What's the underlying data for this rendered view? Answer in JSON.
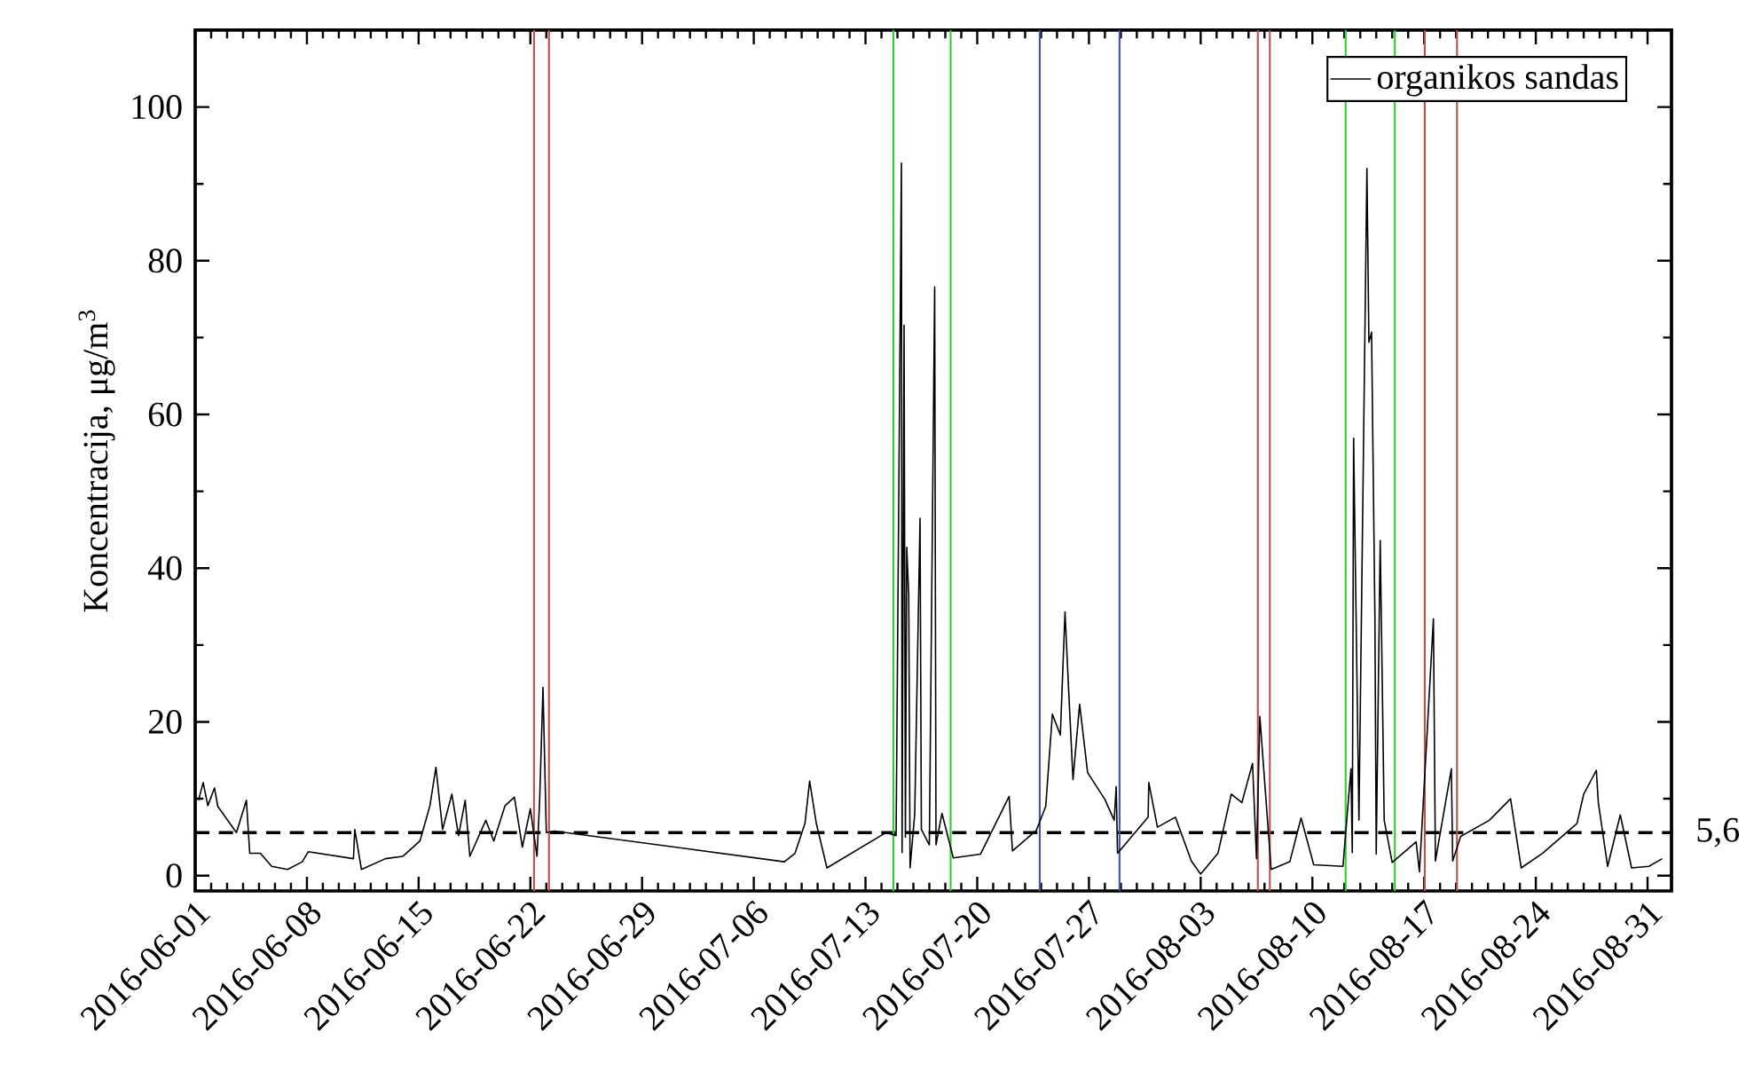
{
  "chart_data": {
    "type": "line",
    "ylabel": "Koncentracija, μg/m$^{3}$",
    "xlim": [
      "2016-06-01",
      "2016-09-01T12:00"
    ],
    "xticks": [
      "2016-06-01",
      "2016-06-08",
      "2016-06-15",
      "2016-06-22",
      "2016-06-29",
      "2016-07-06",
      "2016-07-13",
      "2016-07-20",
      "2016-07-27",
      "2016-08-03",
      "2016-08-10",
      "2016-08-17",
      "2016-08-24",
      "2016-08-31"
    ],
    "ylim": [
      -2,
      110
    ],
    "yticks": [
      0,
      20,
      40,
      60,
      80,
      100
    ],
    "legend": "top right",
    "grid": false,
    "series": [
      {
        "name": "organikos sandas",
        "color": "#000000",
        "line_style": "solid",
        "x": [
          "2016-06-01T05:00",
          "2016-06-01T12:00",
          "2016-06-01T19:00",
          "2016-06-02T05:00",
          "2016-06-02T10:00",
          "2016-06-03T14:00",
          "2016-06-04T05:00",
          "2016-06-04T10:00",
          "2016-06-05T02:00",
          "2016-06-05T19:00",
          "2016-06-06T19:00",
          "2016-06-07T17:00",
          "2016-06-08T02:00",
          "2016-06-10T22:00",
          "2016-06-11T00:00",
          "2016-06-11T10:00",
          "2016-06-12T22:00",
          "2016-06-14T00:00",
          "2016-06-15T02:00",
          "2016-06-15T17:00",
          "2016-06-16T02:00",
          "2016-06-16T12:00",
          "2016-06-17T02:00",
          "2016-06-17T12:00",
          "2016-06-17T22:00",
          "2016-06-18T05:00",
          "2016-06-19T05:00",
          "2016-06-19T17:00",
          "2016-06-20T10:00",
          "2016-06-21T00:00",
          "2016-06-21T12:00",
          "2016-06-22T00:00",
          "2016-06-22T10:00",
          "2016-06-22T14:00",
          "2016-06-22T19:00",
          "2016-06-23T00:00",
          "2016-06-23T12:00",
          "2016-07-07T22:00",
          "2016-07-08T14:00",
          "2016-07-09T05:00",
          "2016-07-09T12:00",
          "2016-07-09T22:00",
          "2016-07-10T14:00",
          "2016-07-14T07:00",
          "2016-07-14T22:00",
          "2016-07-15T06:00",
          "2016-07-15T07:00",
          "2016-07-15T10:00",
          "2016-07-15T12:00",
          "2016-07-15T14:00",
          "2016-07-15T17:00",
          "2016-07-15T19:00",
          "2016-07-16T02:00",
          "2016-07-16T10:00",
          "2016-07-16T12:00",
          "2016-07-17T00:00",
          "2016-07-17T08:00",
          "2016-07-17T10:00",
          "2016-07-17T19:00",
          "2016-07-18T12:00",
          "2016-07-20T05:00",
          "2016-07-22T00:00",
          "2016-07-22T05:00",
          "2016-07-23T17:00",
          "2016-07-24T07:00",
          "2016-07-24T17:00",
          "2016-07-25T05:00",
          "2016-07-25T12:00",
          "2016-07-25T17:00",
          "2016-07-26T00:00",
          "2016-07-26T10:00",
          "2016-07-26T22:00",
          "2016-07-28T00:00",
          "2016-07-28T14:00",
          "2016-07-28T17:00",
          "2016-07-28T19:00",
          "2016-07-30T17:00",
          "2016-07-30T18:00",
          "2016-07-31T07:00",
          "2016-08-01T10:00",
          "2016-08-02T10:00",
          "2016-08-03T00:00",
          "2016-08-04T02:00",
          "2016-08-04T22:00",
          "2016-08-05T14:00",
          "2016-08-06T06:00",
          "2016-08-06T12:00",
          "2016-08-06T17:00",
          "2016-08-07T10:00",
          "2016-08-08T14:00",
          "2016-08-09T07:00",
          "2016-08-10T02:00",
          "2016-08-11T22:00",
          "2016-08-12T10:00",
          "2016-08-12T12:00",
          "2016-08-12T14:00",
          "2016-08-12T22:00",
          "2016-08-13T10:00",
          "2016-08-13T13:00",
          "2016-08-13T17:00",
          "2016-08-13T22:00",
          "2016-08-14T00:00",
          "2016-08-14T06:00",
          "2016-08-14T12:00",
          "2016-08-15T00:00",
          "2016-08-16T12:00",
          "2016-08-16T17:00",
          "2016-08-17T14:00",
          "2016-08-17T17:00",
          "2016-08-18T17:00",
          "2016-08-18T19:00",
          "2016-08-19T07:00",
          "2016-08-21T02:00",
          "2016-08-22T10:00",
          "2016-08-23T02:00",
          "2016-08-24T10:00",
          "2016-08-26T14:00",
          "2016-08-27T00:00",
          "2016-08-27T19:00",
          "2016-08-27T22:00",
          "2016-08-28T12:00",
          "2016-08-29T07:00",
          "2016-08-30T00:00",
          "2016-08-31T02:00",
          "2016-08-31T22:00"
        ],
        "values": [
          9.8,
          12.1,
          9.1,
          11.4,
          9,
          5.6,
          9.8,
          2.9,
          2.9,
          1.2,
          0.8,
          1.8,
          3.1,
          2.2,
          6,
          0.8,
          2.2,
          2.5,
          4.5,
          9.1,
          14.1,
          6,
          10.6,
          5.2,
          9.8,
          2.5,
          7.2,
          4.5,
          9.1,
          10.2,
          3.7,
          8.7,
          2.5,
          9.8,
          24.5,
          5.6,
          5.8,
          1.8,
          2.9,
          6.8,
          12.3,
          6.8,
          1,
          5.6,
          5.2,
          92.7,
          3,
          71.6,
          5,
          42.7,
          36.5,
          1,
          8,
          46.5,
          6,
          4,
          76.6,
          4,
          8.1,
          2.3,
          2.8,
          10.3,
          3.2,
          5.9,
          9,
          21,
          18.3,
          34.3,
          25,
          12.5,
          22.3,
          13.4,
          9.9,
          7.2,
          11.6,
          2.9,
          7.6,
          12.1,
          6.3,
          7.6,
          1.9,
          0.2,
          2.9,
          10.6,
          9.5,
          14.6,
          2.2,
          20.7,
          0.8,
          1.8,
          7.5,
          1.4,
          1.2,
          13.9,
          3,
          56.9,
          7.2,
          92,
          69.4,
          70.7,
          33.8,
          2.8,
          43.6,
          7.2,
          1.7,
          4.4,
          0.5,
          33.4,
          1.9,
          13.9,
          1.9,
          5.1,
          7.2,
          10,
          1,
          2.9,
          6.8,
          10.6,
          13.7,
          9.5,
          1.2,
          7.9,
          1,
          1.2,
          2.2
        ]
      }
    ],
    "ref_lines": [
      {
        "axis": "y",
        "value": 5.6,
        "label": "5,6",
        "color": "#000000",
        "line_style": "dashed"
      },
      {
        "axis": "x",
        "value": "2016-06-22T05:30",
        "color": "#c0504d"
      },
      {
        "axis": "x",
        "value": "2016-06-23T04:00",
        "color": "#c0504d"
      },
      {
        "axis": "x",
        "value": "2016-07-14T18:00",
        "color": "#33cc33"
      },
      {
        "axis": "x",
        "value": "2016-07-18T08:00",
        "color": "#33cc33"
      },
      {
        "axis": "x",
        "value": "2016-07-23T22:00",
        "color": "#4455aa"
      },
      {
        "axis": "x",
        "value": "2016-07-28T22:00",
        "color": "#4455aa"
      },
      {
        "axis": "x",
        "value": "2016-08-06T14:00",
        "color": "#c0504d"
      },
      {
        "axis": "x",
        "value": "2016-08-07T08:00",
        "color": "#c0504d"
      },
      {
        "axis": "x",
        "value": "2016-08-12T02:00",
        "color": "#33cc33"
      },
      {
        "axis": "x",
        "value": "2016-08-15T04:00",
        "color": "#33cc33"
      },
      {
        "axis": "x",
        "value": "2016-08-17T01:00",
        "color": "#c0504d"
      },
      {
        "axis": "x",
        "value": "2016-08-19T01:30",
        "color": "#c0504d"
      }
    ]
  }
}
